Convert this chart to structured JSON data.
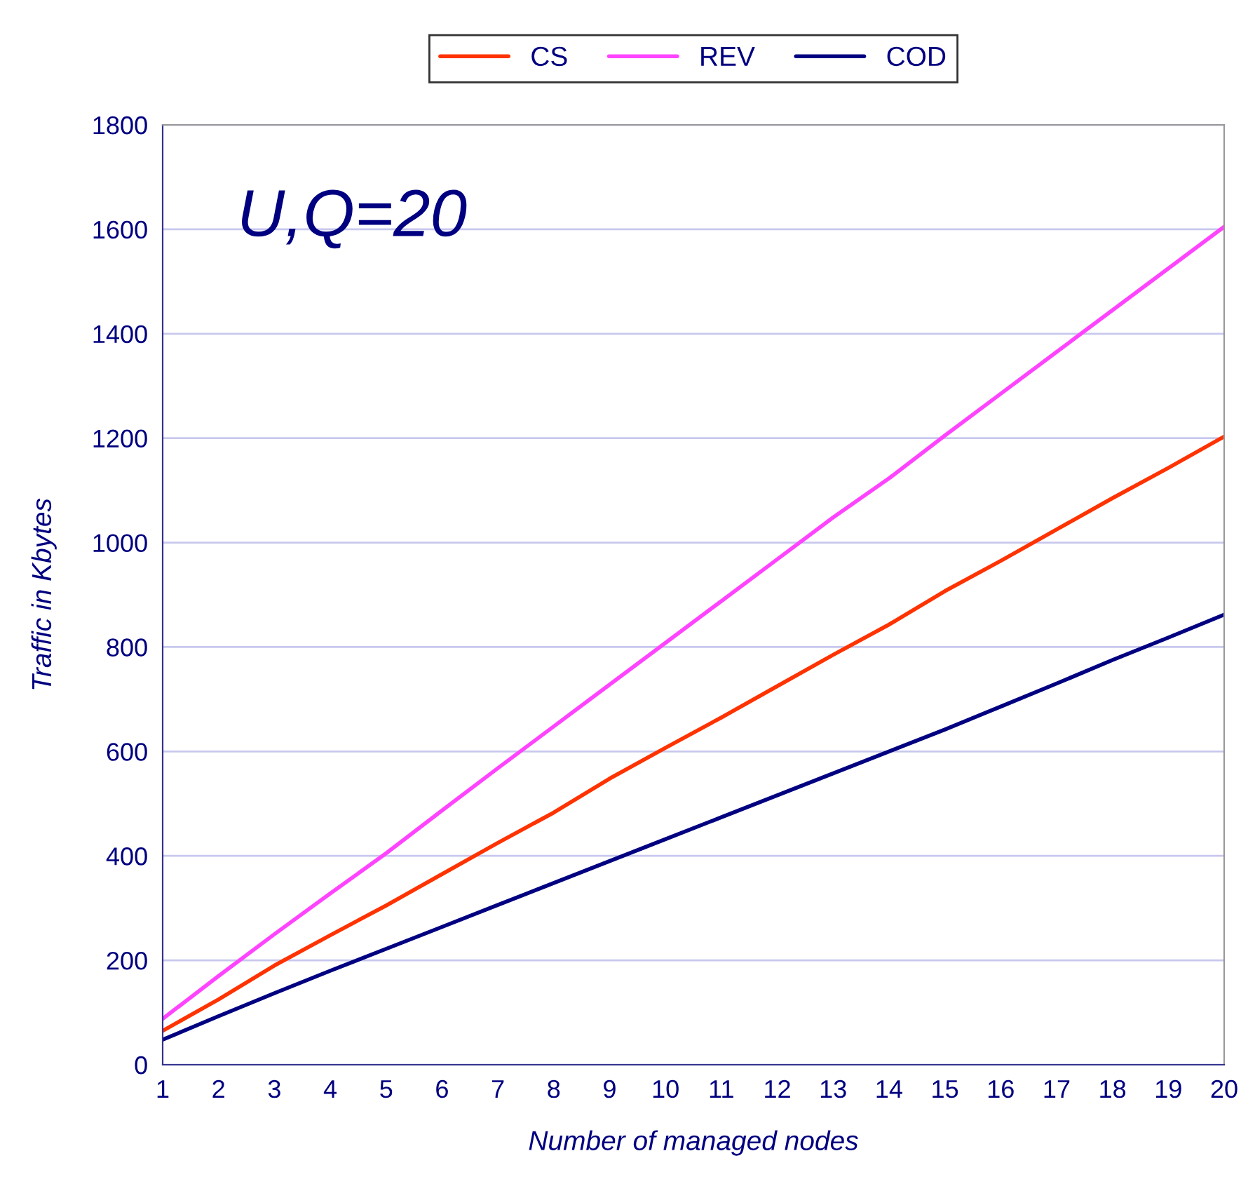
{
  "chart_data": {
    "type": "line",
    "title": "U,Q=20",
    "xlabel": "Number of managed nodes",
    "ylabel": "Traffic in Kbytes",
    "x": [
      1,
      2,
      3,
      4,
      5,
      6,
      7,
      8,
      9,
      10,
      11,
      12,
      13,
      14,
      15,
      16,
      17,
      18,
      19,
      20
    ],
    "series": [
      {
        "name": "CS",
        "color": "#ff3300",
        "values": [
          65,
          125,
          190,
          248,
          305,
          365,
          425,
          483,
          548,
          607,
          665,
          725,
          785,
          843,
          907,
          965,
          1025,
          1085,
          1143,
          1203
        ]
      },
      {
        "name": "REV",
        "color": "#ff44ff",
        "values": [
          88,
          170,
          250,
          328,
          405,
          487,
          568,
          648,
          728,
          808,
          888,
          968,
          1048,
          1123,
          1205,
          1285,
          1365,
          1445,
          1525,
          1605
        ]
      },
      {
        "name": "COD",
        "color": "#000080",
        "values": [
          48,
          93,
          137,
          180,
          222,
          264,
          306,
          348,
          390,
          432,
          474,
          516,
          558,
          600,
          642,
          686,
          730,
          775,
          818,
          862
        ]
      }
    ],
    "xlim": [
      1,
      20
    ],
    "xticks": [
      1,
      2,
      3,
      4,
      5,
      6,
      7,
      8,
      9,
      10,
      11,
      12,
      13,
      14,
      15,
      16,
      17,
      18,
      19,
      20
    ],
    "ylim": [
      0,
      1800
    ],
    "yticks": [
      0,
      200,
      400,
      600,
      800,
      1000,
      1200,
      1400,
      1600,
      1800
    ],
    "grid": "y",
    "legend": "top",
    "marker": "none",
    "line_style": "solid"
  }
}
